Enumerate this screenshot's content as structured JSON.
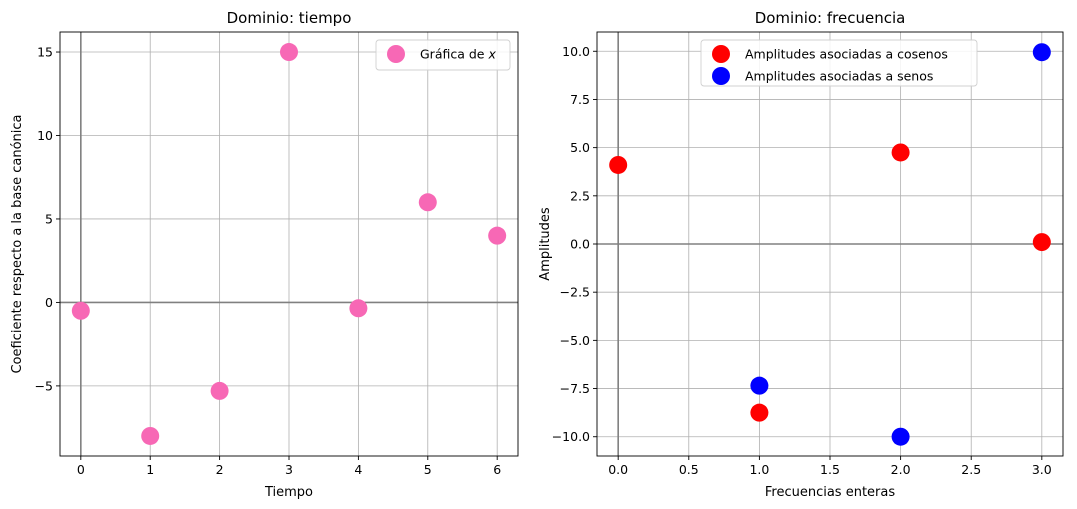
{
  "chart_data": [
    {
      "type": "scatter",
      "title": "Dominio: tiempo",
      "xlabel": "Tiempo",
      "ylabel": "Coeficiente respecto a la base canónica",
      "xlim": [
        -0.3,
        6.3
      ],
      "ylim": [
        -9.2,
        16.2
      ],
      "xticks": [
        0,
        1,
        2,
        3,
        4,
        5,
        6
      ],
      "xtick_labels": [
        "0",
        "1",
        "2",
        "3",
        "4",
        "5",
        "6"
      ],
      "yticks": [
        -5,
        0,
        5,
        10,
        15
      ],
      "ytick_labels": [
        "−5",
        "0",
        "5",
        "10",
        "15"
      ],
      "grid": true,
      "legend_position": "top-right",
      "series": [
        {
          "name": "Gráfica de ",
          "name_math": "x",
          "color": "#f768b5",
          "x": [
            0,
            1,
            2,
            3,
            4,
            5,
            6
          ],
          "y": [
            -0.5,
            -8.0,
            -5.3,
            15.0,
            -0.35,
            6.0,
            4.0
          ]
        }
      ]
    },
    {
      "type": "scatter",
      "title": "Dominio: frecuencia",
      "xlabel": "Frecuencias enteras",
      "ylabel": "Amplitudes",
      "xlim": [
        -0.15,
        3.15
      ],
      "ylim": [
        -11.0,
        11.0
      ],
      "xticks": [
        0,
        0.5,
        1,
        1.5,
        2,
        2.5,
        3
      ],
      "xtick_labels": [
        "0.0",
        "0.5",
        "1.0",
        "1.5",
        "2.0",
        "2.5",
        "3.0"
      ],
      "yticks": [
        -10,
        -7.5,
        -5,
        -2.5,
        0,
        2.5,
        5,
        7.5,
        10
      ],
      "ytick_labels": [
        "−10.0",
        "−7.5",
        "−5.0",
        "−2.5",
        "0.0",
        "2.5",
        "5.0",
        "7.5",
        "10.0"
      ],
      "grid": true,
      "legend_position": "upper-center",
      "series": [
        {
          "name": "Amplitudes asociadas a cosenos",
          "color": "#ff0000",
          "x": [
            0,
            1,
            2,
            3
          ],
          "y": [
            4.1,
            -8.75,
            4.75,
            0.1
          ]
        },
        {
          "name": "Amplitudes asociadas a senos",
          "color": "#0000ff",
          "x": [
            1,
            2,
            3
          ],
          "y": [
            -7.35,
            -10.0,
            9.95
          ]
        }
      ]
    }
  ]
}
